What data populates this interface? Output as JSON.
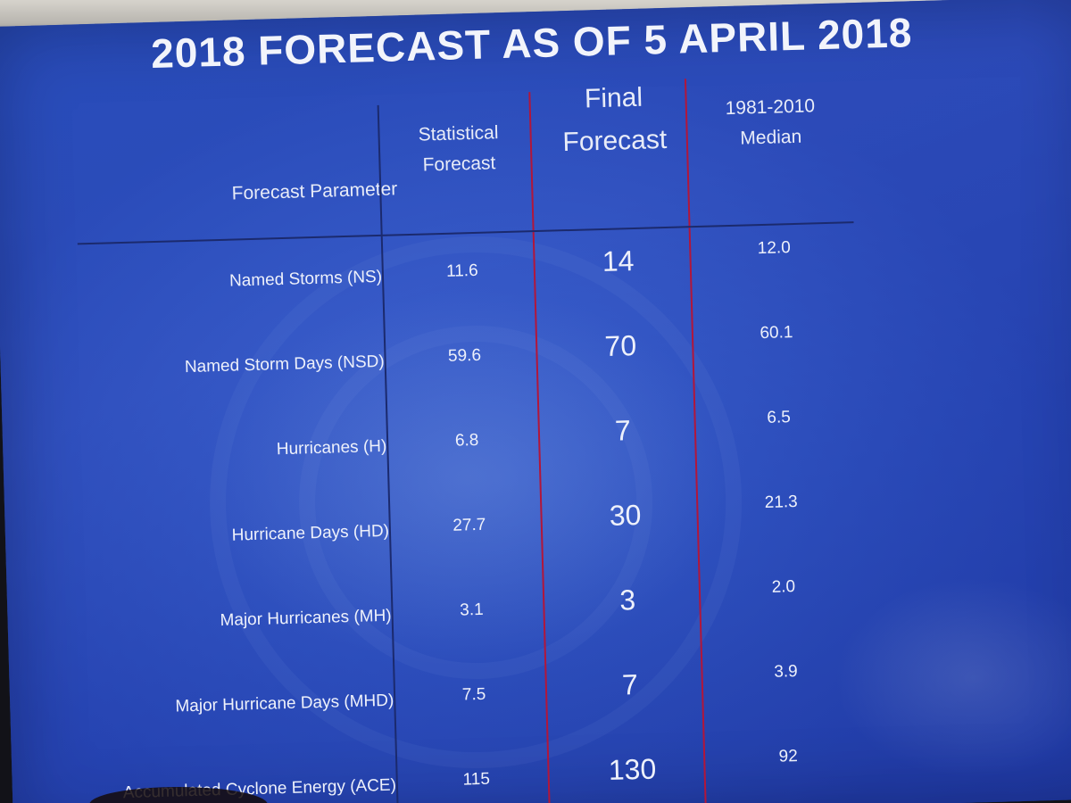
{
  "chart_data": {
    "type": "table",
    "title": "2018 FORECAST AS OF 5 APRIL 2018",
    "columns": [
      {
        "key": "param",
        "label_lines": [
          "Forecast Parameter"
        ]
      },
      {
        "key": "statistical",
        "label_lines": [
          "Statistical",
          "Forecast"
        ]
      },
      {
        "key": "final",
        "label_lines": [
          "Final",
          "Forecast"
        ]
      },
      {
        "key": "median",
        "label_lines": [
          "1981-2010",
          "Median"
        ]
      }
    ],
    "rows": [
      {
        "param": "Named Storms (NS)",
        "statistical": "11.6",
        "final": "14",
        "median": "12.0"
      },
      {
        "param": "Named Storm Days (NSD)",
        "statistical": "59.6",
        "final": "70",
        "median": "60.1"
      },
      {
        "param": "Hurricanes (H)",
        "statistical": "6.8",
        "final": "7",
        "median": "6.5"
      },
      {
        "param": "Hurricane Days (HD)",
        "statistical": "27.7",
        "final": "30",
        "median": "21.3"
      },
      {
        "param": "Major Hurricanes (MH)",
        "statistical": "3.1",
        "final": "3",
        "median": "2.0"
      },
      {
        "param": "Major Hurricane Days (MHD)",
        "statistical": "7.5",
        "final": "7",
        "median": "3.9"
      },
      {
        "param": "Accumulated Cyclone Energy (ACE)",
        "statistical": "115",
        "final": "130",
        "median": "92"
      }
    ],
    "colors": {
      "slide_background": "#3a62d0",
      "text": "#eef1fb",
      "header_rule": "#1b2a6e",
      "separator_blue": "#1b2a6e",
      "separator_red": "#b2163a"
    },
    "grid": false
  }
}
